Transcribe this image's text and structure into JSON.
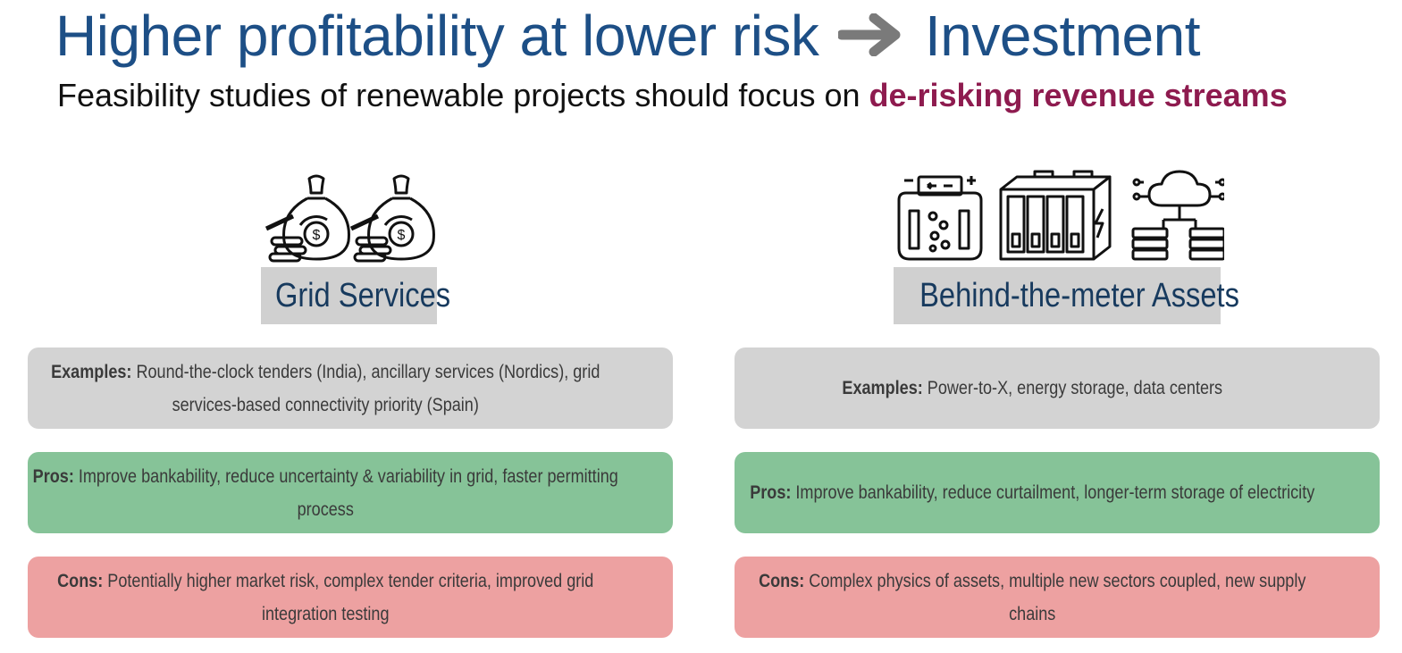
{
  "title": {
    "left": "Higher profitability at lower risk",
    "right": "Investment",
    "arrow_icon": "arrow-right-icon"
  },
  "subtitle": {
    "text": "Feasibility studies of renewable projects should focus on ",
    "highlight": "de-risking revenue streams",
    "highlight_color": "#8e1b4f"
  },
  "columns": [
    {
      "heading": "Grid Services",
      "icons": [
        "money-bag-icon",
        "money-bag-icon"
      ],
      "examples_label": "Examples:",
      "examples_text": " Round-the-clock tenders (India), ancillary services (Nordics), grid services-based connectivity priority (Spain)",
      "pros_label": "Pros:",
      "pros_text": " Improve bankability, reduce uncertainty & variability in grid, faster permitting process",
      "cons_label": "Cons:",
      "cons_text": " Potentially higher market risk, complex tender criteria, improved grid integration testing"
    },
    {
      "heading": "Behind-the-meter Assets",
      "icons": [
        "electrolyzer-icon",
        "battery-storage-icon",
        "cloud-server-icon"
      ],
      "examples_label": "Examples:",
      "examples_text": " Power-to-X, energy storage, data centers",
      "pros_label": "Pros:",
      "pros_text": " Improve bankability, reduce curtailment, longer-term storage of electricity",
      "cons_label": "Cons:",
      "cons_text": " Complex physics of assets, multiple new sectors coupled, new supply chains"
    }
  ],
  "colors": {
    "title": "#1d4f86",
    "heading_bg": "#d0d0d0",
    "examples_bg": "#d3d3d3",
    "pros_bg": "#86c398",
    "cons_bg": "#eda1a1"
  }
}
